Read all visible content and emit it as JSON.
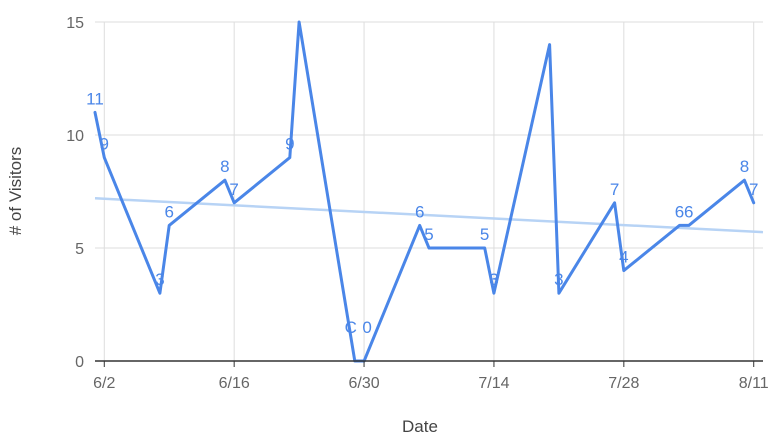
{
  "chart_data": {
    "type": "line",
    "title": "",
    "xlabel": "Date",
    "ylabel": "# of Visitors",
    "xlim": [
      "6/1",
      "8/12"
    ],
    "ylim": [
      0,
      15
    ],
    "x_ticks": [
      "6/2",
      "6/16",
      "6/30",
      "7/14",
      "7/28",
      "8/11"
    ],
    "y_ticks": [
      "0",
      "5",
      "10",
      "15"
    ],
    "grid": true,
    "legend": "none",
    "colors": {
      "series": "#4a86e8",
      "trendline": "#b7d3f5",
      "label": "#4a86e8",
      "grid": "#dddddd",
      "axis": "#333333"
    },
    "series": [
      {
        "x": [
          "6/1",
          "6/2",
          "6/8",
          "6/9",
          "6/15",
          "6/16",
          "6/22",
          "6/23",
          "6/29",
          "6/30",
          "7/6",
          "7/7",
          "7/13",
          "7/14",
          "7/20",
          "7/21",
          "7/27",
          "7/28",
          "8/3",
          "8/4",
          "8/10",
          "8/11"
        ],
        "y": [
          11,
          9,
          3,
          6,
          8,
          7,
          9,
          15,
          0,
          0,
          6,
          5,
          5,
          3,
          14,
          3,
          7,
          4,
          6,
          6,
          8,
          7
        ]
      }
    ],
    "trendline": {
      "type": "linear",
      "start": [
        "6/1",
        7.2
      ],
      "end": [
        "8/12",
        5.7
      ]
    },
    "data_labels": [
      {
        "x": "6/1",
        "y": 11,
        "text": "11"
      },
      {
        "x": "6/2",
        "y": 9,
        "text": "9"
      },
      {
        "x": "6/8",
        "y": 3,
        "text": "3"
      },
      {
        "x": "6/9",
        "y": 6,
        "text": "6"
      },
      {
        "x": "6/15",
        "y": 8,
        "text": "8"
      },
      {
        "x": "6/16",
        "y": 7,
        "text": "7"
      },
      {
        "x": "6/22",
        "y": 9,
        "text": "9"
      },
      {
        "x": "6/29",
        "y": 0,
        "text": "C"
      },
      {
        "x": "6/30",
        "y": 0,
        "text": "0"
      },
      {
        "x": "7/6",
        "y": 6,
        "text": "6"
      },
      {
        "x": "7/7",
        "y": 5,
        "text": "5"
      },
      {
        "x": "7/13",
        "y": 5,
        "text": "5"
      },
      {
        "x": "7/14",
        "y": 3,
        "text": "3"
      },
      {
        "x": "7/21",
        "y": 3,
        "text": "3"
      },
      {
        "x": "7/27",
        "y": 7,
        "text": "7"
      },
      {
        "x": "7/28",
        "y": 4,
        "text": "4"
      },
      {
        "x": "8/3",
        "y": 6,
        "text": "6"
      },
      {
        "x": "8/4",
        "y": 6,
        "text": "6"
      },
      {
        "x": "8/10",
        "y": 8,
        "text": "8"
      },
      {
        "x": "8/11",
        "y": 7,
        "text": "7"
      }
    ]
  }
}
